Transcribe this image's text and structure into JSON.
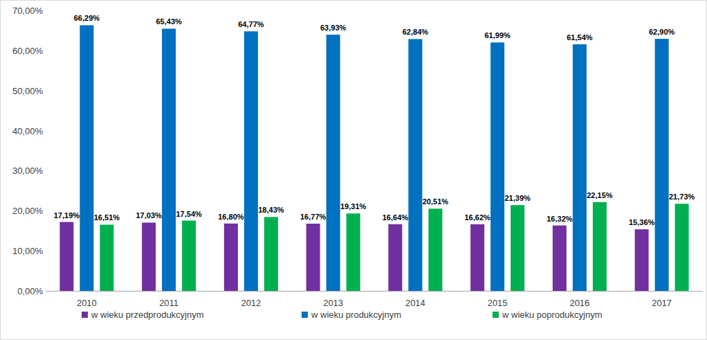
{
  "chart_data": {
    "type": "bar",
    "categories": [
      "2010",
      "2011",
      "2012",
      "2013",
      "2014",
      "2015",
      "2016",
      "2017"
    ],
    "series": [
      {
        "name": "w wieku przedprodukcyjnym",
        "color": "#7030a0",
        "values": [
          17.19,
          17.03,
          16.8,
          16.77,
          16.64,
          16.62,
          16.32,
          15.36
        ],
        "value_labels": [
          "17,19%",
          "17,03%",
          "16,80%",
          "16,77%",
          "16,64%",
          "16,62%",
          "16,32%",
          "15,36%"
        ]
      },
      {
        "name": "w wieku produkcyjnym",
        "color": "#0070c0",
        "values": [
          66.29,
          65.43,
          64.77,
          63.93,
          62.84,
          61.99,
          61.54,
          62.9
        ],
        "value_labels": [
          "66,29%",
          "65,43%",
          "64,77%",
          "63,93%",
          "62,84%",
          "61,99%",
          "61,54%",
          "62,90%"
        ]
      },
      {
        "name": "w wieku poprodukcyjnym",
        "color": "#00b050",
        "values": [
          16.51,
          17.54,
          18.43,
          19.31,
          20.51,
          21.39,
          22.15,
          21.73
        ],
        "value_labels": [
          "16,51%",
          "17,54%",
          "18,43%",
          "19,31%",
          "20,51%",
          "21,39%",
          "22,15%",
          "21,73%"
        ]
      }
    ],
    "ylim": [
      0,
      70
    ],
    "yticks": [
      {
        "value": 0,
        "label": "0,00%"
      },
      {
        "value": 10,
        "label": "10,00%"
      },
      {
        "value": 20,
        "label": "20,00%"
      },
      {
        "value": 30,
        "label": "30,00%"
      },
      {
        "value": 40,
        "label": "40,00%"
      },
      {
        "value": 50,
        "label": "50,00%"
      },
      {
        "value": 60,
        "label": "60,00%"
      },
      {
        "value": 70,
        "label": "70,00%"
      }
    ],
    "grid": false,
    "legend": "bottom",
    "data_labels": true
  }
}
